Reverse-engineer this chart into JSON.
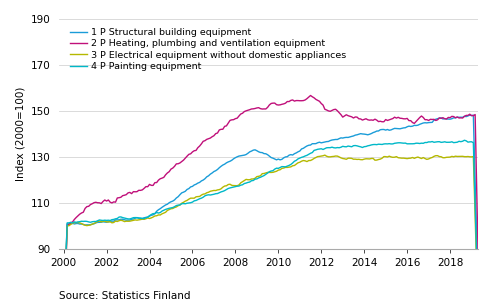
{
  "title": "",
  "ylabel": "Index (2000=100)",
  "xlabel": "",
  "source": "Source: Statistics Finland",
  "ylim": [
    90,
    190
  ],
  "yticks": [
    90,
    110,
    130,
    150,
    170,
    190
  ],
  "xlim": [
    1999.8,
    2019.3
  ],
  "xticks": [
    2000,
    2002,
    2004,
    2006,
    2008,
    2010,
    2012,
    2014,
    2016,
    2018
  ],
  "series": {
    "1P": {
      "label": "1 P Structural building equipment",
      "color": "#1a9cd8",
      "lw": 1.0
    },
    "2P": {
      "label": "2 P Heating, plumbing and ventilation equipment",
      "color": "#c0107a",
      "lw": 1.0
    },
    "3P": {
      "label": "3 P Electrical equipment without domestic appliances",
      "color": "#b5b800",
      "lw": 1.0
    },
    "4P": {
      "label": "4 P Painting equipment",
      "color": "#00b8c8",
      "lw": 1.0
    }
  },
  "legend_fontsize": 6.8,
  "tick_fontsize": 7.5,
  "label_fontsize": 7.5,
  "source_fontsize": 7.5,
  "background_color": "#ffffff",
  "grid_color": "#cccccc"
}
